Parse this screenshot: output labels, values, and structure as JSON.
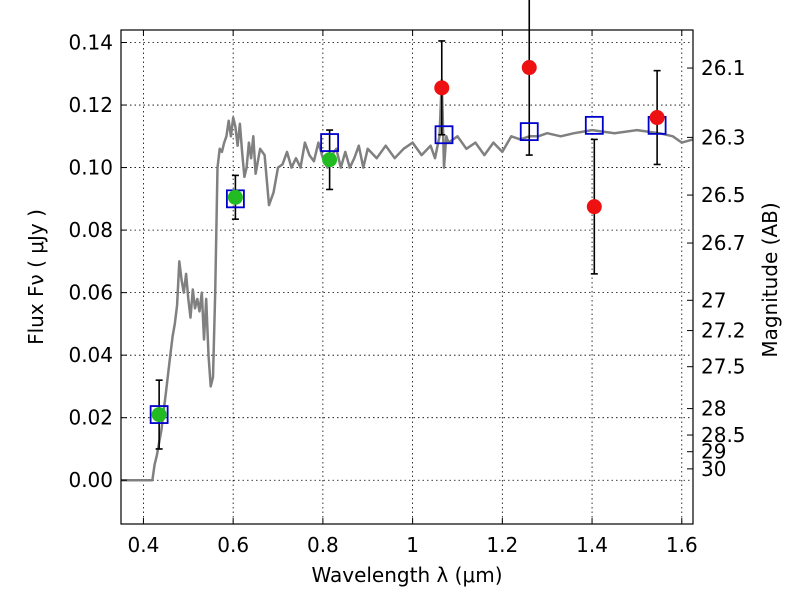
{
  "chart_data": {
    "type": "scatter",
    "title": "",
    "xlabel": "Wavelength  λ (μm)",
    "ylabel": "Flux  Fν  ( μJy )",
    "ylabel_right": "Magnitude (AB)",
    "xlim": [
      0.35,
      1.625
    ],
    "ylim": [
      -0.014,
      0.144
    ],
    "xticks": [
      0.4,
      0.6,
      0.8,
      1.0,
      1.2,
      1.4,
      1.6
    ],
    "xtick_labels": [
      "0.4",
      "0.6",
      "0.8",
      "1",
      "1.2",
      "1.4",
      "1.6"
    ],
    "yticks": [
      0.0,
      0.02,
      0.04,
      0.06,
      0.08,
      0.1,
      0.12,
      0.14
    ],
    "ytick_labels": [
      "0.00",
      "0.02",
      "0.04",
      "0.06",
      "0.08",
      "0.10",
      "0.12",
      "0.14"
    ],
    "right_ticks": [
      {
        "label": "26.1",
        "value": 26.1
      },
      {
        "label": "26.3",
        "value": 26.3
      },
      {
        "label": "26.5",
        "value": 26.5
      },
      {
        "label": "26.7",
        "value": 26.7
      },
      {
        "label": "27",
        "value": 27.0
      },
      {
        "label": "27.2",
        "value": 27.2
      },
      {
        "label": "27.5",
        "value": 27.5
      },
      {
        "label": "28",
        "value": 28.0
      },
      {
        "label": "28.5",
        "value": 28.5
      },
      {
        "label": "29",
        "value": 29.0
      },
      {
        "label": "30",
        "value": 30.0
      }
    ],
    "grid": true,
    "colors": {
      "model": "#808080",
      "green_points": "#22bb22",
      "red_points": "#ee1111",
      "model_boxes": "#0000cc",
      "errorbars": "#000000"
    },
    "series": [
      {
        "kind": "line",
        "x": [
          0.35,
          0.42,
          0.425,
          0.43,
          0.435,
          0.44,
          0.445,
          0.45,
          0.455,
          0.46,
          0.465,
          0.47,
          0.475,
          0.48,
          0.485,
          0.49,
          0.495,
          0.5,
          0.505,
          0.51,
          0.515,
          0.52,
          0.525,
          0.53,
          0.535,
          0.54,
          0.545,
          0.55,
          0.555,
          0.56,
          0.565,
          0.57,
          0.575,
          0.58,
          0.585,
          0.59,
          0.595,
          0.6,
          0.605,
          0.61,
          0.615,
          0.62,
          0.625,
          0.63,
          0.635,
          0.64,
          0.645,
          0.65,
          0.66,
          0.67,
          0.68,
          0.69,
          0.7,
          0.71,
          0.72,
          0.73,
          0.74,
          0.75,
          0.76,
          0.77,
          0.78,
          0.79,
          0.8,
          0.81,
          0.82,
          0.83,
          0.84,
          0.85,
          0.86,
          0.87,
          0.88,
          0.89,
          0.9,
          0.92,
          0.94,
          0.96,
          0.98,
          1.0,
          1.02,
          1.04,
          1.05,
          1.06,
          1.065,
          1.07,
          1.075,
          1.08,
          1.1,
          1.12,
          1.14,
          1.16,
          1.18,
          1.2,
          1.22,
          1.24,
          1.26,
          1.28,
          1.3,
          1.33,
          1.36,
          1.4,
          1.45,
          1.5,
          1.55,
          1.58,
          1.6,
          1.625
        ],
        "y": [
          0.0,
          0.0,
          0.005,
          0.008,
          0.012,
          0.016,
          0.022,
          0.028,
          0.034,
          0.04,
          0.046,
          0.05,
          0.056,
          0.07,
          0.064,
          0.06,
          0.066,
          0.058,
          0.052,
          0.061,
          0.055,
          0.058,
          0.054,
          0.06,
          0.045,
          0.058,
          0.04,
          0.03,
          0.033,
          0.06,
          0.1,
          0.106,
          0.105,
          0.108,
          0.11,
          0.115,
          0.11,
          0.116,
          0.113,
          0.107,
          0.114,
          0.105,
          0.097,
          0.1,
          0.108,
          0.103,
          0.11,
          0.098,
          0.106,
          0.104,
          0.088,
          0.092,
          0.1,
          0.101,
          0.105,
          0.1,
          0.103,
          0.1,
          0.108,
          0.104,
          0.102,
          0.108,
          0.103,
          0.1,
          0.104,
          0.106,
          0.1,
          0.105,
          0.1,
          0.103,
          0.107,
          0.1,
          0.106,
          0.103,
          0.107,
          0.103,
          0.106,
          0.108,
          0.104,
          0.107,
          0.103,
          0.11,
          0.128,
          0.1,
          0.11,
          0.108,
          0.11,
          0.106,
          0.108,
          0.104,
          0.108,
          0.105,
          0.11,
          0.109,
          0.11,
          0.11,
          0.111,
          0.11,
          0.111,
          0.112,
          0.111,
          0.112,
          0.111,
          0.11,
          0.108,
          0.109
        ]
      },
      {
        "kind": "points",
        "marker": "circle",
        "color_key": "green_points",
        "x": [
          0.435,
          0.605,
          0.815
        ],
        "y": [
          0.021,
          0.0905,
          0.1025
        ],
        "yerr": [
          0.011,
          0.007,
          0.0095
        ]
      },
      {
        "kind": "points",
        "marker": "circle",
        "color_key": "red_points",
        "x": [
          1.065,
          1.26,
          1.405,
          1.545
        ],
        "y": [
          0.1255,
          0.132,
          0.0875,
          0.116
        ],
        "yerr": [
          0.015,
          0.028,
          0.0215,
          0.015
        ]
      },
      {
        "kind": "points",
        "marker": "square",
        "color_key": "model_boxes",
        "x": [
          0.435,
          0.605,
          0.815,
          1.07,
          1.26,
          1.405,
          1.545
        ],
        "y": [
          0.021,
          0.09,
          0.108,
          0.1105,
          0.1115,
          0.1135,
          0.1135
        ]
      }
    ]
  }
}
